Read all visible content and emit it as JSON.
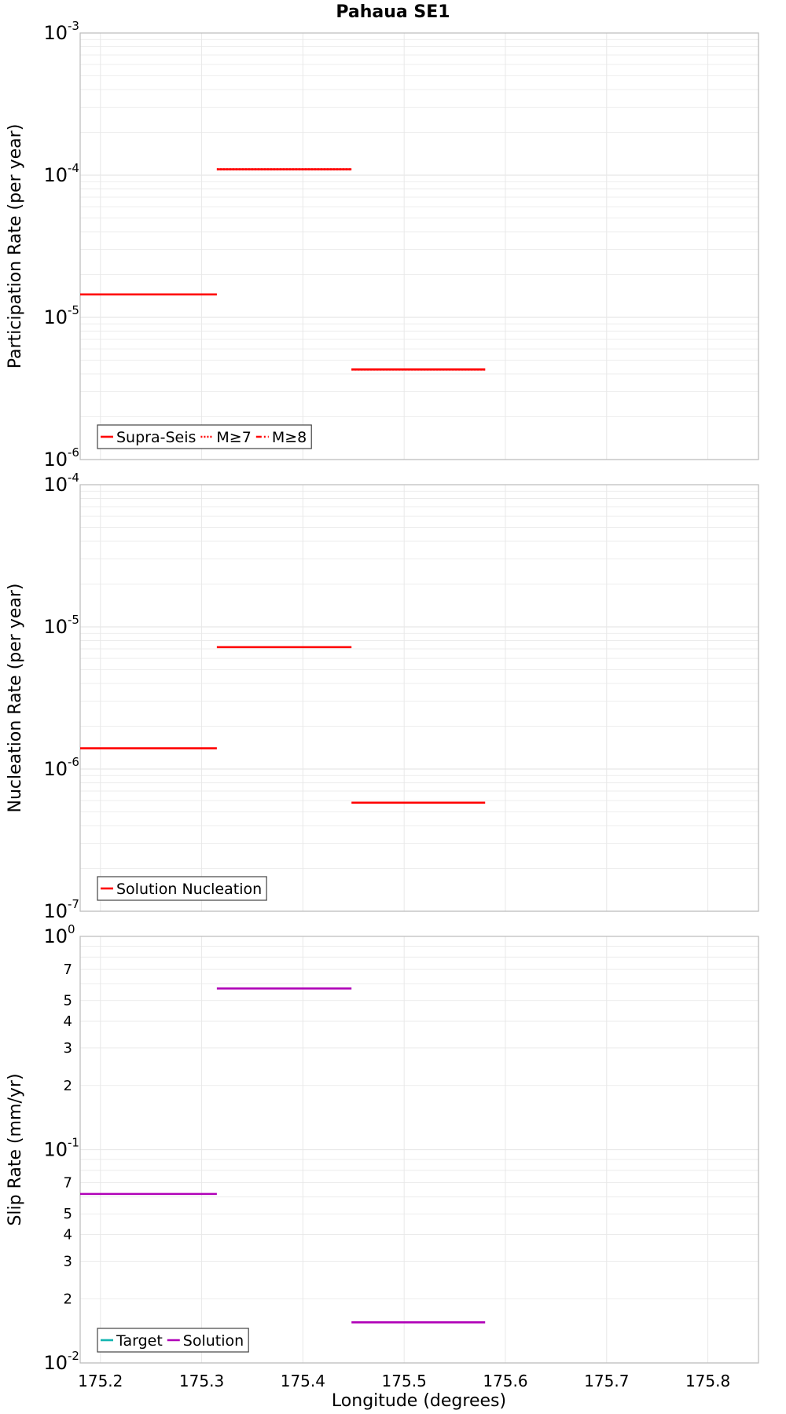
{
  "title": "Pahaua SE1",
  "xlabel": "Longitude (degrees)",
  "colors": {
    "red": "#ff0000",
    "magenta": "#b000b8",
    "teal": "#12b5b0",
    "grid": "#e8e8e8",
    "frame": "#bbbbbb"
  },
  "chart_data": [
    {
      "type": "line",
      "scale": "log",
      "ylabel": "Participation Rate (per year)",
      "xlim": [
        175.18,
        175.85
      ],
      "ylim": [
        1e-06,
        0.001
      ],
      "yticks": [
        {
          "base": "10",
          "exp": "-6",
          "value": 1e-06
        },
        {
          "base": "10",
          "exp": "-5",
          "value": 1e-05
        },
        {
          "base": "10",
          "exp": "-4",
          "value": 0.0001
        },
        {
          "base": "10",
          "exp": "-3",
          "value": 0.001
        }
      ],
      "legend": {
        "position": "bottom-left",
        "entries": [
          {
            "label": "Supra-Seis",
            "color": "#ff0000",
            "style": "solid"
          },
          {
            "label": "M≥7",
            "color": "#ff0000",
            "style": "dotted"
          },
          {
            "label": "M≥8",
            "color": "#ff0000",
            "style": "dashdot"
          }
        ]
      },
      "series": [
        {
          "name": "Supra-Seis",
          "color": "#ff0000",
          "style": "solid",
          "segments": [
            {
              "x": [
                175.18,
                175.315
              ],
              "y": 1.45e-05
            },
            {
              "x": [
                175.315,
                175.448
              ],
              "y": 0.00011
            },
            {
              "x": [
                175.448,
                175.58
              ],
              "y": 4.3e-06
            }
          ]
        },
        {
          "name": "M≥7",
          "color": "#ff0000",
          "style": "dotted",
          "segments": [
            {
              "x": [
                175.315,
                175.448
              ],
              "y": 0.00011
            },
            {
              "x": [
                175.448,
                175.58
              ],
              "y": 4.3e-06
            }
          ]
        }
      ]
    },
    {
      "type": "line",
      "scale": "log",
      "ylabel": "Nucleation Rate (per year)",
      "xlim": [
        175.18,
        175.85
      ],
      "ylim": [
        1e-07,
        0.0001
      ],
      "yticks": [
        {
          "base": "10",
          "exp": "-7",
          "value": 1e-07
        },
        {
          "base": "10",
          "exp": "-6",
          "value": 1e-06
        },
        {
          "base": "10",
          "exp": "-5",
          "value": 1e-05
        },
        {
          "base": "10",
          "exp": "-4",
          "value": 0.0001
        }
      ],
      "legend": {
        "position": "bottom-left",
        "entries": [
          {
            "label": "Solution Nucleation",
            "color": "#ff0000",
            "style": "solid"
          }
        ]
      },
      "series": [
        {
          "name": "Solution Nucleation",
          "color": "#ff0000",
          "style": "solid",
          "segments": [
            {
              "x": [
                175.18,
                175.315
              ],
              "y": 1.4e-06
            },
            {
              "x": [
                175.315,
                175.448
              ],
              "y": 7.2e-06
            },
            {
              "x": [
                175.448,
                175.58
              ],
              "y": 5.8e-07
            }
          ]
        }
      ]
    },
    {
      "type": "line",
      "scale": "log",
      "ylabel": "Slip Rate (mm/yr)",
      "xlim": [
        175.18,
        175.85
      ],
      "ylim": [
        0.01,
        1
      ],
      "yticks": [
        {
          "base": "10",
          "exp": "-2",
          "value": 0.01
        },
        {
          "base": "2",
          "value": 0.02
        },
        {
          "base": "3",
          "value": 0.03
        },
        {
          "base": "4",
          "value": 0.04
        },
        {
          "base": "5",
          "value": 0.05
        },
        {
          "base": "7",
          "value": 0.07
        },
        {
          "base": "10",
          "exp": "-1",
          "value": 0.1
        },
        {
          "base": "2",
          "value": 0.2
        },
        {
          "base": "3",
          "value": 0.3
        },
        {
          "base": "4",
          "value": 0.4
        },
        {
          "base": "5",
          "value": 0.5
        },
        {
          "base": "7",
          "value": 0.7
        },
        {
          "base": "10",
          "exp": "0",
          "value": 1
        }
      ],
      "legend": {
        "position": "bottom-left",
        "entries": [
          {
            "label": "Target",
            "color": "#12b5b0",
            "style": "solid"
          },
          {
            "label": "Solution",
            "color": "#b000b8",
            "style": "solid"
          }
        ]
      },
      "series": [
        {
          "name": "Solution",
          "color": "#b000b8",
          "style": "solid",
          "segments": [
            {
              "x": [
                175.18,
                175.315
              ],
              "y": 0.062
            },
            {
              "x": [
                175.315,
                175.448
              ],
              "y": 0.57
            },
            {
              "x": [
                175.448,
                175.58
              ],
              "y": 0.0155
            }
          ]
        }
      ]
    }
  ],
  "xticks": [
    "175.2",
    "175.3",
    "175.4",
    "175.5",
    "175.6",
    "175.7",
    "175.8"
  ],
  "xtick_values": [
    175.2,
    175.3,
    175.4,
    175.5,
    175.6,
    175.7,
    175.8
  ]
}
